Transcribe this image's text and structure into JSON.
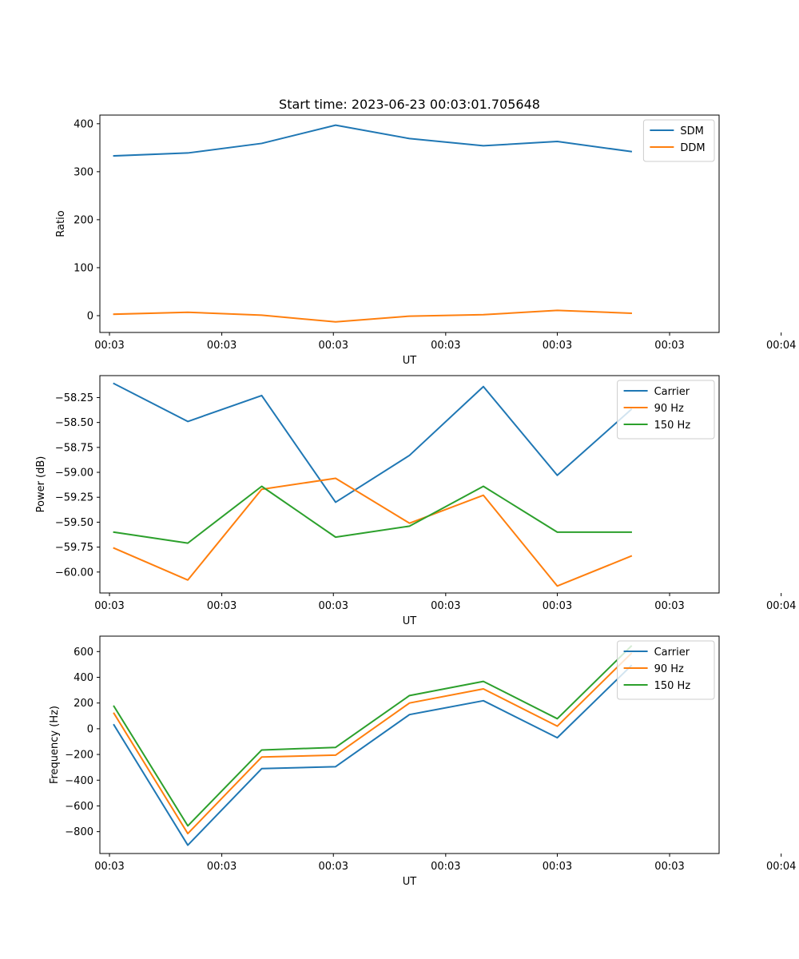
{
  "figure": {
    "title": "Start time: 2023-06-23 00:03:01.705648"
  },
  "colors": {
    "blue": "#1f77b4",
    "orange": "#ff7f0e",
    "green": "#2ca02c",
    "frame": "#000000"
  },
  "chart_data": [
    {
      "type": "line",
      "title": "Start time: 2023-06-23 00:03:01.705648",
      "xlabel": "UT",
      "ylabel": "Ratio",
      "x": [
        1,
        2,
        3,
        4,
        5,
        6,
        7,
        8
      ],
      "xlim": [
        0.81,
        9.19
      ],
      "xticks": [
        0.94,
        2.46,
        3.97,
        5.49,
        7.0,
        8.52,
        10.03
      ],
      "xtick_labels": [
        "00:03",
        "00:03",
        "00:03",
        "00:03",
        "00:03",
        "00:03",
        "00:04"
      ],
      "ylim": [
        -35,
        418
      ],
      "yticks": [
        0,
        100,
        200,
        300,
        400
      ],
      "legend": "top-right",
      "grid": false,
      "series": [
        {
          "name": "SDM",
          "color": "#1f77b4",
          "values": [
            333,
            339,
            359,
            397,
            369,
            354,
            363,
            342
          ]
        },
        {
          "name": "DDM",
          "color": "#ff7f0e",
          "values": [
            3,
            7,
            1,
            -13,
            -1,
            2,
            11,
            5
          ]
        }
      ]
    },
    {
      "type": "line",
      "xlabel": "UT",
      "ylabel": "Power (dB)",
      "x": [
        1,
        2,
        3,
        4,
        5,
        6,
        7,
        8
      ],
      "xlim": [
        0.81,
        9.19
      ],
      "xticks": [
        0.94,
        2.46,
        3.97,
        5.49,
        7.0,
        8.52,
        10.03
      ],
      "xtick_labels": [
        "00:03",
        "00:03",
        "00:03",
        "00:03",
        "00:03",
        "00:03",
        "00:04"
      ],
      "ylim": [
        -60.21,
        -58.03
      ],
      "yticks": [
        -60.0,
        -59.75,
        -59.5,
        -59.25,
        -59.0,
        -58.75,
        -58.5,
        -58.25
      ],
      "ytick_labels": [
        "−60.00",
        "−59.75",
        "−59.50",
        "−59.25",
        "−59.00",
        "−58.75",
        "−58.50",
        "−58.25"
      ],
      "legend": "top-right",
      "grid": false,
      "series": [
        {
          "name": "Carrier",
          "color": "#1f77b4",
          "values": [
            -58.11,
            -58.49,
            -58.23,
            -59.3,
            -58.83,
            -58.14,
            -59.03,
            -58.37
          ]
        },
        {
          "name": "90 Hz",
          "color": "#ff7f0e",
          "values": [
            -59.76,
            -60.08,
            -59.17,
            -59.06,
            -59.51,
            -59.23,
            -60.14,
            -59.84
          ]
        },
        {
          "name": "150 Hz",
          "color": "#2ca02c",
          "values": [
            -59.6,
            -59.71,
            -59.14,
            -59.65,
            -59.54,
            -59.14,
            -59.6,
            -59.6
          ]
        }
      ]
    },
    {
      "type": "line",
      "xlabel": "UT",
      "ylabel": "Frequency (Hz)",
      "x": [
        1,
        2,
        3,
        4,
        5,
        6,
        7,
        8
      ],
      "xlim": [
        0.81,
        9.19
      ],
      "xticks": [
        0.94,
        2.46,
        3.97,
        5.49,
        7.0,
        8.52,
        10.03
      ],
      "xtick_labels": [
        "00:03",
        "00:03",
        "00:03",
        "00:03",
        "00:03",
        "00:03",
        "00:04"
      ],
      "ylim": [
        -970,
        720
      ],
      "yticks": [
        -800,
        -600,
        -400,
        -200,
        0,
        200,
        400,
        600
      ],
      "ytick_labels": [
        "−800",
        "−600",
        "−400",
        "−200",
        "0",
        "200",
        "400",
        "600"
      ],
      "legend": "top-right",
      "grid": false,
      "series": [
        {
          "name": "Carrier",
          "color": "#1f77b4",
          "values": [
            30,
            -905,
            -310,
            -295,
            110,
            218,
            -70,
            490
          ]
        },
        {
          "name": "90 Hz",
          "color": "#ff7f0e",
          "values": [
            120,
            -815,
            -220,
            -205,
            200,
            310,
            20,
            585
          ]
        },
        {
          "name": "150 Hz",
          "color": "#2ca02c",
          "values": [
            175,
            -755,
            -165,
            -145,
            258,
            368,
            78,
            642
          ]
        }
      ]
    }
  ]
}
